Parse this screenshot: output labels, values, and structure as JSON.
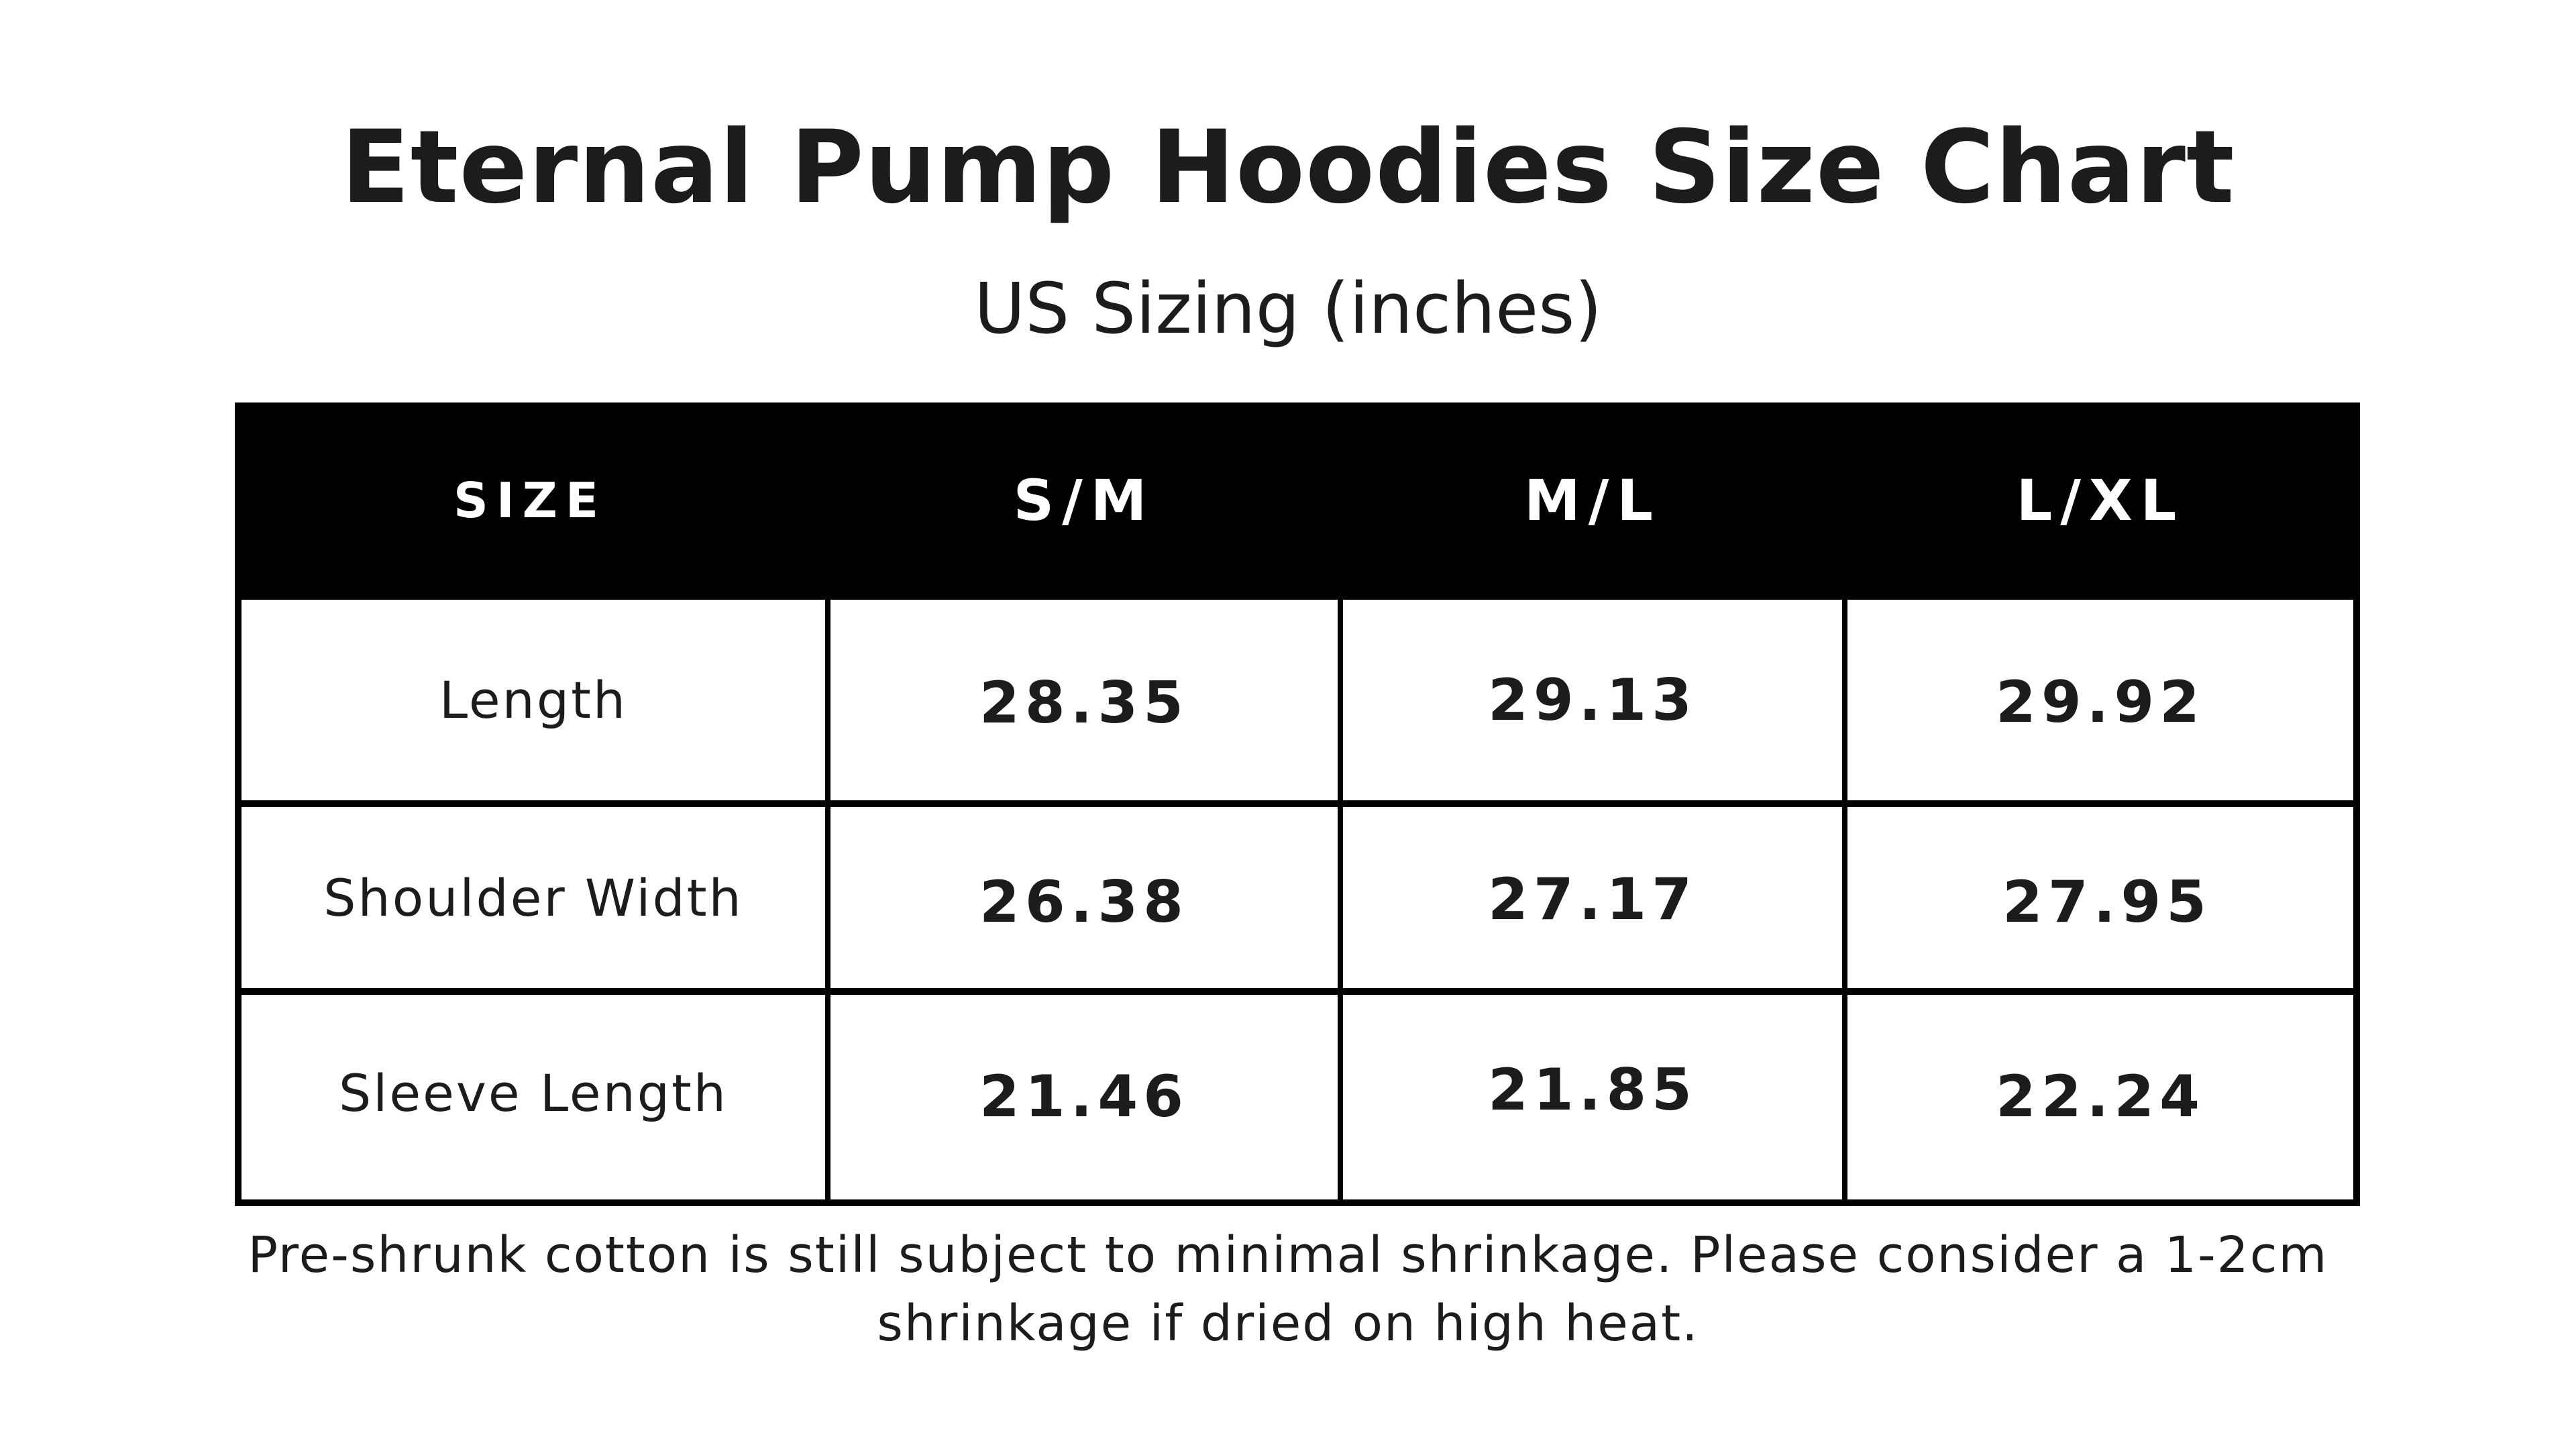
{
  "title": "Eternal Pump Hoodies Size Chart",
  "subtitle": "US Sizing (inches)",
  "table": {
    "header": {
      "size_label": "SIZE",
      "columns": [
        "S/M",
        "M/L",
        "L/XL"
      ]
    },
    "rows": [
      {
        "label": "Length",
        "values": [
          "28.35",
          "29.13",
          "29.92"
        ]
      },
      {
        "label": "Shoulder Width",
        "values": [
          "26.38",
          "27.17",
          "27.95"
        ]
      },
      {
        "label": "Sleeve Length",
        "values": [
          "21.46",
          "21.85",
          "22.24"
        ]
      }
    ]
  },
  "note": {
    "line1": "Pre-shrunk cotton is still subject to minimal shrinkage. Please consider a 1-2cm",
    "line2": "shrinkage if dried on high heat."
  },
  "colors": {
    "header_background": "#000000",
    "header_text": "#ffffff",
    "body_text": "#1c1c1c",
    "grid_lines": "#000000"
  }
}
